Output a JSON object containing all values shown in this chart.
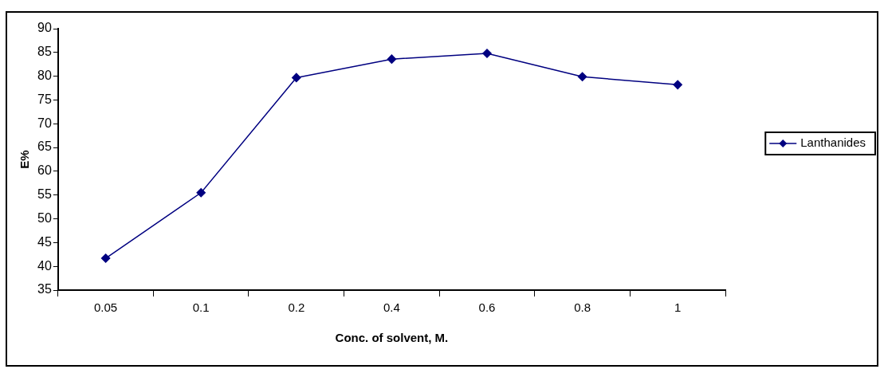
{
  "chart_data": {
    "type": "line",
    "xlabel": "Conc. of solvent, M.",
    "ylabel": "E%",
    "categories": [
      "0.05",
      "0.1",
      "0.2",
      "0.4",
      "0.6",
      "0.8",
      "1"
    ],
    "series": [
      {
        "name": "Lanthanides",
        "color": "#000080",
        "values": [
          41.7,
          55.5,
          79.7,
          83.6,
          84.8,
          79.9,
          78.2
        ]
      }
    ],
    "ylim": [
      35,
      90
    ],
    "yticks": [
      35,
      40,
      45,
      50,
      55,
      60,
      65,
      70,
      75,
      80,
      85,
      90
    ],
    "grid": false,
    "legend": "right",
    "marker": "diamond",
    "line_style": "solid"
  }
}
